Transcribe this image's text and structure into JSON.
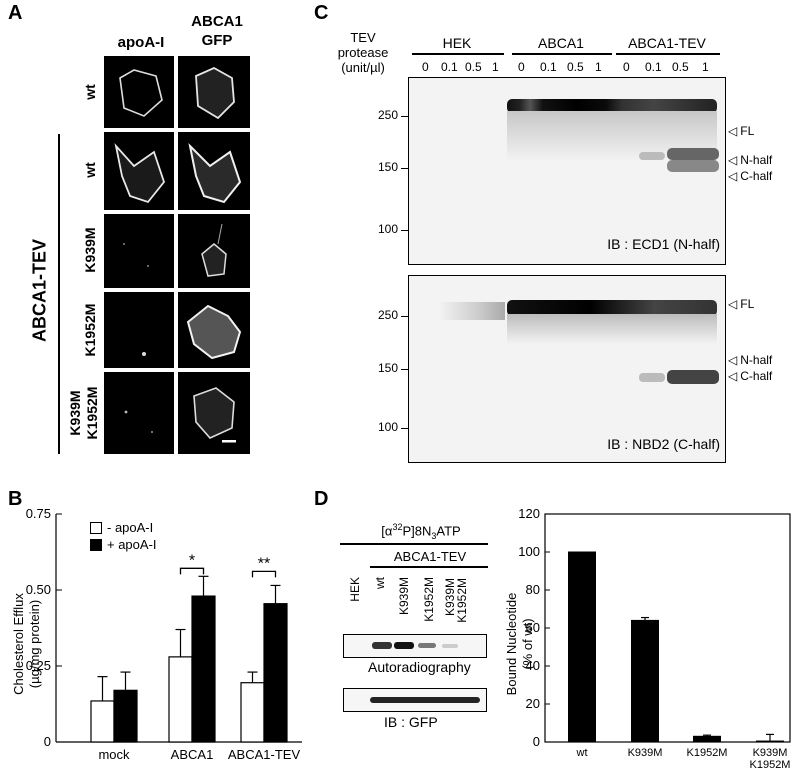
{
  "panel_labels": {
    "a": "A",
    "b": "B",
    "c": "C",
    "d": "D"
  },
  "panel_a": {
    "col_headers": [
      "apoA-I",
      "ABCA1\nGFP"
    ],
    "row_labels": [
      "wt",
      "wt",
      "K939M",
      "K1952M",
      "K939M\nK1952M"
    ],
    "group_label": "ABCA1-TEV"
  },
  "panel_b": {
    "ylabel_line1": "Cholesterol Efflux",
    "ylabel_line2": "(µg/mg protein)",
    "legend": [
      "- apoA-I",
      "+ apoA-I"
    ],
    "significance": [
      "*",
      "**"
    ]
  },
  "panel_c": {
    "header_line1": "TEV",
    "header_line2": "protease",
    "header_line3": "(unit/µl)",
    "groups": [
      "HEK",
      "ABCA1",
      "ABCA1-TEV"
    ],
    "concentrations": [
      "0",
      "0.1",
      "0.5",
      "1"
    ],
    "mw_markers": [
      "250",
      "150",
      "100"
    ],
    "band_labels_top": [
      "FL",
      "N-half",
      "C-half"
    ],
    "band_labels_bottom": [
      "FL",
      "N-half",
      "C-half"
    ],
    "ib_top": "IB : ECD1 (N-half)",
    "ib_bottom": "IB : NBD2 (C-half)"
  },
  "panel_d": {
    "reagent_pre": "[α",
    "reagent_sup": "32",
    "reagent_mid": "P]8N",
    "reagent_sub": "3",
    "reagent_post": "ATP",
    "construct": "ABCA1-TEV",
    "lanes": [
      "HEK",
      "wt",
      "K939M",
      "K1952M",
      "K939M\nK1952M"
    ],
    "autorad_label": "Autoradiography",
    "ib_label": "IB : GFP"
  },
  "chart_data": [
    {
      "type": "bar",
      "panel": "B",
      "categories": [
        "mock",
        "ABCA1",
        "ABCA1-TEV"
      ],
      "series": [
        {
          "name": "- apoA-I",
          "values": [
            0.135,
            0.28,
            0.195
          ],
          "errors": [
            0.08,
            0.09,
            0.035
          ],
          "color": "#ffffff"
        },
        {
          "name": "+ apoA-I",
          "values": [
            0.17,
            0.48,
            0.455
          ],
          "errors": [
            0.06,
            0.065,
            0.06
          ],
          "color": "#000000"
        }
      ],
      "ylabel": "Cholesterol Efflux (µg/mg protein)",
      "ylim": [
        0,
        0.75
      ],
      "yticks": [
        "0",
        "0.25",
        "0.50",
        "0.75"
      ]
    },
    {
      "type": "bar",
      "panel": "D",
      "categories": [
        "wt",
        "K939M",
        "K1952M",
        "K939M\nK1952M"
      ],
      "values": [
        100,
        64,
        3,
        0.5
      ],
      "errors": [
        0,
        1.5,
        0.6,
        3.5
      ],
      "ylabel": "Bound Nucleotide (% of wt)",
      "ylim": [
        0,
        120
      ],
      "yticks": [
        "0",
        "20",
        "40",
        "60",
        "80",
        "100",
        "120"
      ]
    }
  ]
}
